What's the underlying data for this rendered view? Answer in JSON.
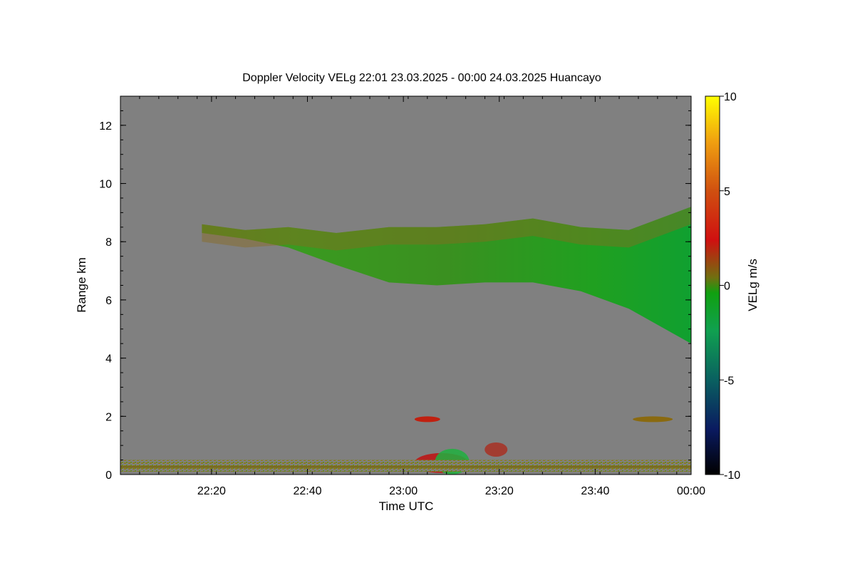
{
  "chart_data": {
    "type": "heatmap",
    "title": "Doppler Velocity VELg   22:01 23.03.2025 - 00:00 24.03.2025 Huancayo",
    "xlabel": "Time UTC",
    "ylabel": "Range km",
    "x_range": [
      "22:01",
      "00:00"
    ],
    "x_ticks": [
      "22:20",
      "22:40",
      "23:00",
      "23:20",
      "23:40",
      "00:00"
    ],
    "y_range": [
      0,
      13
    ],
    "y_ticks": [
      0,
      2,
      4,
      6,
      8,
      10,
      12
    ],
    "colorbar": {
      "label": "VELg m/s",
      "range": [
        -10,
        10
      ],
      "ticks": [
        10,
        5,
        0,
        -5,
        -10
      ],
      "colors": [
        "#000000",
        "#0a1a60",
        "#0a6060",
        "#10a050",
        "#10a010",
        "#707010",
        "#d01010",
        "#d05010",
        "#f0a010",
        "#ffff00"
      ]
    },
    "background_color": "#808080",
    "features": [
      {
        "name": "upper-cloud-layer",
        "time_start": "22:18",
        "time_end": "00:00",
        "top_km": [
          8.6,
          8.4,
          8.5,
          8.3,
          8.5,
          8.5,
          8.6,
          8.8,
          8.5,
          8.4,
          9.2
        ],
        "bottom_km": [
          8.3,
          8.1,
          7.8,
          7.2,
          6.6,
          6.5,
          6.6,
          6.6,
          6.3,
          5.7,
          4.5
        ],
        "times": [
          "22:18",
          "22:27",
          "22:36",
          "22:46",
          "22:57",
          "23:07",
          "23:17",
          "23:27",
          "23:37",
          "23:47",
          "00:00"
        ],
        "dominant_velocity_ms": -1
      },
      {
        "name": "low-cloud-2km-left",
        "time": "23:05",
        "range_km": 1.9,
        "dominant_velocity_ms": 2
      },
      {
        "name": "low-cloud-2km-right",
        "time": "23:52",
        "range_km": 1.9,
        "dominant_velocity_ms": 0.5
      },
      {
        "name": "precip-plume",
        "time_start": "23:02",
        "time_end": "23:22",
        "range_km": [
          0.1,
          1.2
        ],
        "dominant_velocity_ms": 1
      },
      {
        "name": "ground-clutter-band",
        "time_start": "22:01",
        "time_end": "00:00",
        "range_km": [
          0.1,
          0.5
        ],
        "dominant_velocity_ms": 0
      }
    ]
  }
}
